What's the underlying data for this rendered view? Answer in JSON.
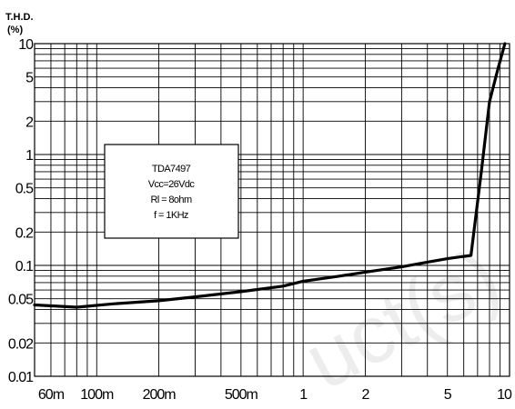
{
  "chart_data": {
    "type": "line",
    "ylabel_lines": [
      "T.H.D.",
      "(%)"
    ],
    "xlabel": "",
    "x_scale": "log",
    "y_scale": "log",
    "xlim": [
      0.05,
      10
    ],
    "ylim": [
      0.01,
      10
    ],
    "grid": true,
    "x_tick_labels": [
      {
        "value": 0.06,
        "label": "60m"
      },
      {
        "value": 0.1,
        "label": "100m"
      },
      {
        "value": 0.2,
        "label": "200m"
      },
      {
        "value": 0.5,
        "label": "500m"
      },
      {
        "value": 1,
        "label": "1"
      },
      {
        "value": 2,
        "label": "2"
      },
      {
        "value": 5,
        "label": "5"
      },
      {
        "value": 10,
        "label": "10"
      }
    ],
    "y_tick_labels": [
      {
        "value": 10,
        "label": "10"
      },
      {
        "value": 5,
        "label": "5"
      },
      {
        "value": 2,
        "label": "2"
      },
      {
        "value": 1,
        "label": "1"
      },
      {
        "value": 0.5,
        "label": "0.5"
      },
      {
        "value": 0.2,
        "label": "0.2"
      },
      {
        "value": 0.1,
        "label": "0.1"
      },
      {
        "value": 0.05,
        "label": "0.05"
      },
      {
        "value": 0.02,
        "label": "0.02"
      },
      {
        "value": 0.01,
        "label": "0.01"
      }
    ],
    "annotation": [
      "TDA7497",
      "Vcc=26Vdc",
      "Rl = 8ohm",
      "f = 1KHz"
    ],
    "series": [
      {
        "color": "#000000",
        "points": [
          [
            0.05,
            0.044
          ],
          [
            0.08,
            0.042
          ],
          [
            0.12,
            0.045
          ],
          [
            0.2,
            0.048
          ],
          [
            0.3,
            0.052
          ],
          [
            0.5,
            0.058
          ],
          [
            0.8,
            0.065
          ],
          [
            1.0,
            0.072
          ],
          [
            1.5,
            0.08
          ],
          [
            2.0,
            0.087
          ],
          [
            3.0,
            0.097
          ],
          [
            4.0,
            0.107
          ],
          [
            5.0,
            0.115
          ],
          [
            6.5,
            0.123
          ],
          [
            7.3,
            0.7
          ],
          [
            8.0,
            3.0
          ],
          [
            8.8,
            6.0
          ],
          [
            9.5,
            10.0
          ]
        ]
      }
    ]
  },
  "watermark_text": "uct(s)"
}
